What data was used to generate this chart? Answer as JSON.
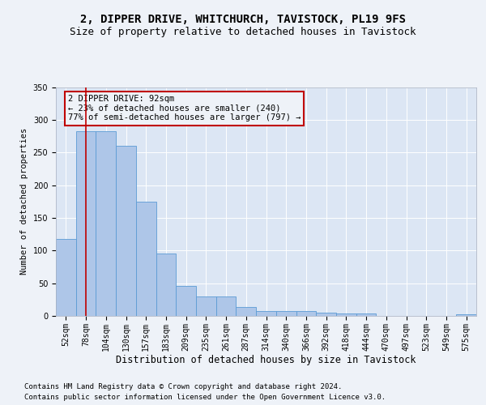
{
  "title1": "2, DIPPER DRIVE, WHITCHURCH, TAVISTOCK, PL19 9FS",
  "title2": "Size of property relative to detached houses in Tavistock",
  "xlabel": "Distribution of detached houses by size in Tavistock",
  "ylabel": "Number of detached properties",
  "categories": [
    "52sqm",
    "78sqm",
    "104sqm",
    "130sqm",
    "157sqm",
    "183sqm",
    "209sqm",
    "235sqm",
    "261sqm",
    "287sqm",
    "314sqm",
    "340sqm",
    "366sqm",
    "392sqm",
    "418sqm",
    "444sqm",
    "470sqm",
    "497sqm",
    "523sqm",
    "549sqm",
    "575sqm"
  ],
  "values": [
    118,
    283,
    283,
    260,
    175,
    96,
    46,
    30,
    30,
    14,
    8,
    8,
    8,
    5,
    4,
    4,
    0,
    0,
    0,
    0,
    3
  ],
  "bar_color": "#aec6e8",
  "bar_edge_color": "#5b9bd5",
  "red_line_index": 1,
  "red_line_color": "#c00000",
  "annotation_text": "2 DIPPER DRIVE: 92sqm\n← 23% of detached houses are smaller (240)\n77% of semi-detached houses are larger (797) →",
  "annotation_box_edge": "#c00000",
  "ylim": [
    0,
    350
  ],
  "yticks": [
    0,
    50,
    100,
    150,
    200,
    250,
    300,
    350
  ],
  "footer1": "Contains HM Land Registry data © Crown copyright and database right 2024.",
  "footer2": "Contains public sector information licensed under the Open Government Licence v3.0.",
  "bg_color": "#eef2f8",
  "plot_bg_color": "#dce6f4",
  "title1_fontsize": 10,
  "title2_fontsize": 9,
  "xlabel_fontsize": 8.5,
  "ylabel_fontsize": 7.5,
  "tick_fontsize": 7,
  "annotation_fontsize": 7.5,
  "footer_fontsize": 6.5
}
